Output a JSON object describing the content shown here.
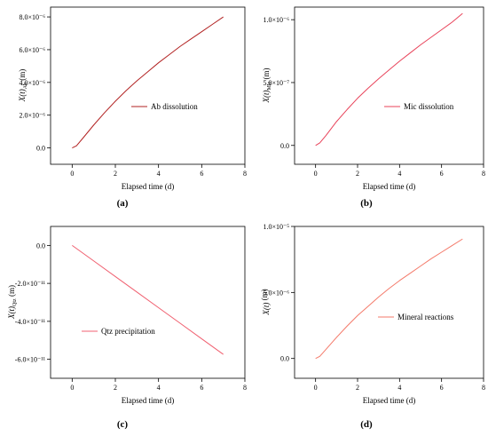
{
  "chart_data": [
    {
      "type": "line",
      "panel_label": "(a)",
      "xlabel": "Elapsed time (d)",
      "ylabel": "X(t)Ab (m)",
      "ylabel_main": "X(t)",
      "ylabel_sub": "Ab",
      "ylabel_unit": " (m)",
      "xlim": [
        -1,
        8
      ],
      "ylim": [
        -1e-06,
        8.6e-06
      ],
      "xticks": [
        0,
        2,
        4,
        6,
        8
      ],
      "xtick_labels": [
        "0",
        "2",
        "4",
        "6",
        "8"
      ],
      "yticks": [
        0,
        2e-06,
        4e-06,
        6e-06,
        8e-06
      ],
      "ytick_labels": [
        "0.0",
        "2.0×10⁻⁶",
        "4.0×10⁻⁶",
        "6.0×10⁻⁶",
        "8.0×10⁻⁶"
      ],
      "color": "#b22222",
      "legend_position": "center-right",
      "series": [
        {
          "name": "Ab dissolution",
          "x": [
            0,
            0.2,
            0.5,
            1,
            1.5,
            2,
            2.5,
            3,
            3.5,
            4,
            4.5,
            5,
            5.5,
            6,
            6.5,
            7
          ],
          "y": [
            0,
            1.3e-07,
            6e-07,
            1.4e-06,
            2.15e-06,
            2.85e-06,
            3.5e-06,
            4.1e-06,
            4.65e-06,
            5.2e-06,
            5.7e-06,
            6.2e-06,
            6.65e-06,
            7.1e-06,
            7.55e-06,
            8e-06
          ]
        }
      ]
    },
    {
      "type": "line",
      "panel_label": "(b)",
      "xlabel": "Elapsed time (d)",
      "ylabel": "X(t)Mic (m)",
      "ylabel_main": "X(t)",
      "ylabel_sub": "Mic",
      "ylabel_unit": " (m)",
      "xlim": [
        -1,
        8
      ],
      "ylim": [
        -1.5e-07,
        1.1e-06
      ],
      "xticks": [
        0,
        2,
        4,
        6,
        8
      ],
      "xtick_labels": [
        "0",
        "2",
        "4",
        "6",
        "8"
      ],
      "yticks": [
        0,
        5e-07,
        1e-06
      ],
      "ytick_labels": [
        "0.0",
        "5.0×10⁻⁷",
        "1.0×10⁻⁶"
      ],
      "color": "#e8435a",
      "legend_position": "center-right",
      "series": [
        {
          "name": "Mic dissolution",
          "x": [
            0,
            0.2,
            0.5,
            1,
            1.5,
            2,
            2.5,
            3,
            3.5,
            4,
            4.5,
            5,
            5.5,
            6,
            6.5,
            7
          ],
          "y": [
            0,
            2e-08,
            8e-08,
            1.9e-07,
            2.85e-07,
            3.75e-07,
            4.55e-07,
            5.3e-07,
            6e-07,
            6.7e-07,
            7.35e-07,
            8e-07,
            8.6e-07,
            9.2e-07,
            9.8e-07,
            1.05e-06
          ]
        }
      ]
    },
    {
      "type": "line",
      "panel_label": "(c)",
      "xlabel": "Elapsed time (d)",
      "ylabel": "X(t)Qtz (m)",
      "ylabel_main": "X(t)",
      "ylabel_sub": "Qtz",
      "ylabel_unit": " (m)",
      "xlim": [
        -1,
        8
      ],
      "ylim": [
        -7e-11,
        1e-11
      ],
      "xticks": [
        0,
        2,
        4,
        6,
        8
      ],
      "xtick_labels": [
        "0",
        "2",
        "4",
        "6",
        "8"
      ],
      "yticks": [
        -6e-11,
        -4e-11,
        -2e-11,
        0
      ],
      "ytick_labels": [
        "-6.0×10⁻¹¹",
        "-4.0×10⁻¹¹",
        "-2.0×10⁻¹¹",
        "0.0"
      ],
      "color": "#f06070",
      "legend_position": "lower-left",
      "series": [
        {
          "name": "Qtz precipitation",
          "x": [
            0,
            1,
            2,
            3,
            4,
            5,
            6,
            7
          ],
          "y": [
            0,
            -8.2e-12,
            -1.64e-11,
            -2.46e-11,
            -3.28e-11,
            -4.1e-11,
            -4.92e-11,
            -5.74e-11
          ]
        }
      ]
    },
    {
      "type": "line",
      "panel_label": "(d)",
      "xlabel": "Elapsed time (d)",
      "ylabel": "X(t) (m)",
      "ylabel_main": "X(t)",
      "ylabel_sub": "",
      "ylabel_unit": " (m)",
      "xlim": [
        -1,
        8
      ],
      "ylim": [
        -1.5e-06,
        1e-05
      ],
      "xticks": [
        0,
        2,
        4,
        6,
        8
      ],
      "xtick_labels": [
        "0",
        "2",
        "4",
        "6",
        "8"
      ],
      "yticks": [
        0,
        5e-06,
        1e-05
      ],
      "ytick_labels": [
        "0.0",
        "5.0×10⁻⁶",
        "1.0×10⁻⁵"
      ],
      "color": "#f47a6a",
      "legend_position": "center-right",
      "series": [
        {
          "name": "Mineral reactions",
          "x": [
            0,
            0.2,
            0.5,
            1,
            1.5,
            2,
            2.5,
            3,
            3.5,
            4,
            4.5,
            5,
            5.5,
            6,
            6.5,
            7
          ],
          "y": [
            0,
            1.6e-07,
            7e-07,
            1.6e-06,
            2.45e-06,
            3.25e-06,
            3.95e-06,
            4.65e-06,
            5.3e-06,
            5.9e-06,
            6.45e-06,
            7e-06,
            7.55e-06,
            8.05e-06,
            8.55e-06,
            9.05e-06
          ]
        }
      ]
    }
  ]
}
